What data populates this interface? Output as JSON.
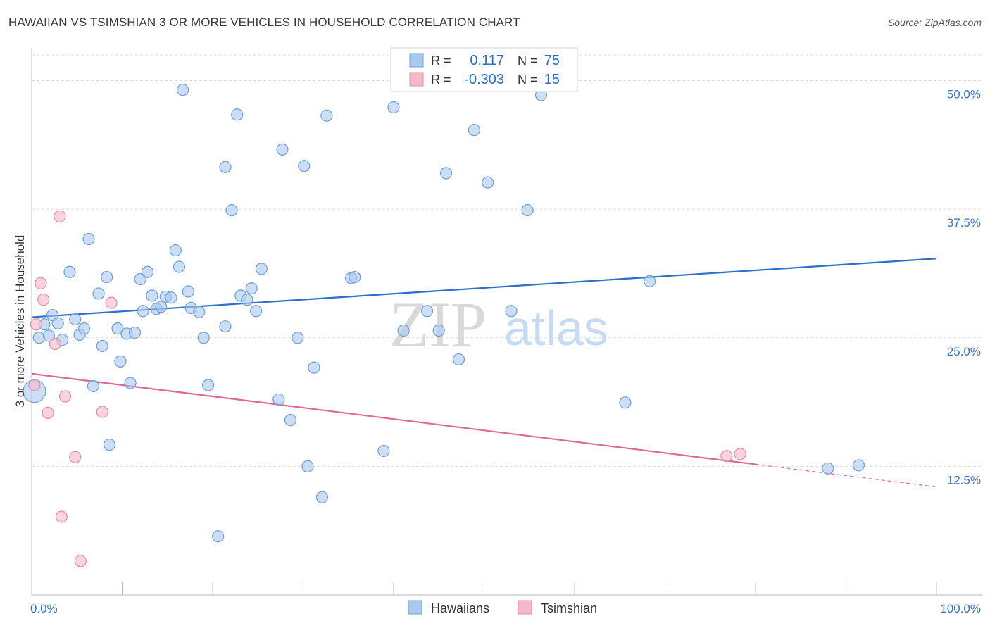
{
  "header": {
    "title": "HAWAIIAN VS TSIMSHIAN 3 OR MORE VEHICLES IN HOUSEHOLD CORRELATION CHART",
    "source": "Source: ZipAtlas.com"
  },
  "watermark": {
    "zip": "ZIP",
    "atlas": "atlas"
  },
  "colors": {
    "blue_fill": "#a9c8ee",
    "blue_stroke": "#6d9fd8",
    "blue_line": "#2a6fcb",
    "pink_fill": "#f5b8c9",
    "pink_stroke": "#e88aa7",
    "pink_line": "#e0679a",
    "axis_text": "#3a72c8",
    "grid": "#dddddd"
  },
  "legend_top": {
    "rows": [
      {
        "r_label": "R =",
        "r_value": "0.117",
        "n_label": "N =",
        "n_value": "75"
      },
      {
        "r_label": "R =",
        "r_value": "-0.303",
        "n_label": "N =",
        "n_value": "15"
      }
    ]
  },
  "legend_bottom": {
    "items": [
      "Hawaiians",
      "Tsimshian"
    ]
  },
  "chart_data": {
    "type": "scatter",
    "title": "HAWAIIAN VS TSIMSHIAN 3 OR MORE VEHICLES IN HOUSEHOLD CORRELATION CHART",
    "xlabel": "",
    "ylabel": "3 or more Vehicles in Household",
    "xlim": [
      0,
      100
    ],
    "ylim": [
      0,
      52.5
    ],
    "x_tick_labels": [
      "0.0%",
      "100.0%"
    ],
    "y_ticks": [
      12.5,
      25.0,
      37.5,
      50.0
    ],
    "y_tick_labels": [
      "12.5%",
      "25.0%",
      "37.5%",
      "50.0%"
    ],
    "grid": true,
    "legend_position": "bottom-center",
    "series": [
      {
        "name": "Hawaiians",
        "r": 0.117,
        "n": 75,
        "trend": {
          "x0": 0,
          "y0": 27.0,
          "x1": 100,
          "y1": 32.7
        },
        "points": [
          [
            0.3,
            19.8,
            16
          ],
          [
            0.8,
            25.0,
            8
          ],
          [
            1.4,
            26.3,
            8
          ],
          [
            1.9,
            25.2,
            8
          ],
          [
            2.3,
            27.2,
            8
          ],
          [
            2.9,
            26.4,
            8
          ],
          [
            3.4,
            24.8,
            8
          ],
          [
            4.2,
            31.4,
            8
          ],
          [
            4.8,
            26.8,
            8
          ],
          [
            5.3,
            25.3,
            8
          ],
          [
            5.8,
            25.9,
            8
          ],
          [
            6.3,
            34.6,
            8
          ],
          [
            6.8,
            20.3,
            8
          ],
          [
            7.4,
            29.3,
            8
          ],
          [
            7.8,
            24.2,
            8
          ],
          [
            8.3,
            30.9,
            8
          ],
          [
            8.6,
            14.6,
            8
          ],
          [
            9.5,
            25.9,
            8
          ],
          [
            9.8,
            22.7,
            8
          ],
          [
            10.5,
            25.4,
            8
          ],
          [
            10.9,
            20.6,
            8
          ],
          [
            11.4,
            25.5,
            8
          ],
          [
            12.0,
            30.7,
            8
          ],
          [
            12.3,
            27.6,
            8
          ],
          [
            12.8,
            31.4,
            8
          ],
          [
            13.3,
            29.1,
            8
          ],
          [
            13.8,
            27.8,
            8
          ],
          [
            14.3,
            28.0,
            8
          ],
          [
            14.8,
            29.0,
            8
          ],
          [
            15.4,
            28.9,
            8
          ],
          [
            15.9,
            33.5,
            8
          ],
          [
            16.3,
            31.9,
            8
          ],
          [
            16.7,
            49.1,
            8
          ],
          [
            17.3,
            29.5,
            8
          ],
          [
            17.6,
            27.9,
            8
          ],
          [
            18.5,
            27.5,
            8
          ],
          [
            19.0,
            25.0,
            8
          ],
          [
            19.5,
            20.4,
            8
          ],
          [
            20.6,
            5.7,
            8
          ],
          [
            21.4,
            41.6,
            8
          ],
          [
            21.4,
            26.1,
            8
          ],
          [
            22.1,
            37.4,
            8
          ],
          [
            22.7,
            46.7,
            8
          ],
          [
            23.1,
            29.1,
            8
          ],
          [
            23.8,
            28.7,
            8
          ],
          [
            24.3,
            29.8,
            8
          ],
          [
            24.8,
            27.6,
            8
          ],
          [
            25.4,
            31.7,
            8
          ],
          [
            27.3,
            19.0,
            8
          ],
          [
            27.7,
            43.3,
            8
          ],
          [
            28.6,
            17.0,
            8
          ],
          [
            29.4,
            25.0,
            8
          ],
          [
            30.1,
            41.7,
            8
          ],
          [
            30.5,
            12.5,
            8
          ],
          [
            31.2,
            22.1,
            8
          ],
          [
            32.1,
            9.5,
            8
          ],
          [
            32.6,
            46.6,
            8
          ],
          [
            35.3,
            30.8,
            8
          ],
          [
            35.7,
            30.9,
            8
          ],
          [
            38.9,
            14.0,
            8
          ],
          [
            40.0,
            47.4,
            8
          ],
          [
            41.1,
            25.7,
            8
          ],
          [
            43.7,
            27.6,
            8
          ],
          [
            45.0,
            25.7,
            8
          ],
          [
            45.8,
            41.0,
            8
          ],
          [
            47.2,
            22.9,
            8
          ],
          [
            48.9,
            45.2,
            8
          ],
          [
            50.4,
            40.1,
            8
          ],
          [
            53.0,
            27.6,
            8
          ],
          [
            54.8,
            37.4,
            8
          ],
          [
            56.3,
            48.6,
            8
          ],
          [
            65.6,
            18.7,
            8
          ],
          [
            68.3,
            30.5,
            8
          ],
          [
            88.0,
            12.3,
            8
          ],
          [
            91.4,
            12.6,
            8
          ]
        ]
      },
      {
        "name": "Tsimshian",
        "r": -0.303,
        "n": 15,
        "trend": {
          "x0": 0,
          "y0": 21.5,
          "x1": 100,
          "y1": 10.5,
          "solid_until_x": 80
        },
        "points": [
          [
            0.3,
            20.4,
            8
          ],
          [
            0.5,
            26.3,
            8
          ],
          [
            1.0,
            30.3,
            8
          ],
          [
            1.3,
            28.7,
            8
          ],
          [
            1.8,
            17.7,
            8
          ],
          [
            2.6,
            24.4,
            8
          ],
          [
            3.1,
            36.8,
            8
          ],
          [
            3.3,
            7.6,
            8
          ],
          [
            3.7,
            19.3,
            8
          ],
          [
            4.8,
            13.4,
            8
          ],
          [
            5.4,
            3.3,
            8
          ],
          [
            7.8,
            17.8,
            8
          ],
          [
            8.8,
            28.4,
            8
          ],
          [
            76.8,
            13.5,
            8
          ],
          [
            78.3,
            13.7,
            8
          ]
        ]
      }
    ]
  }
}
